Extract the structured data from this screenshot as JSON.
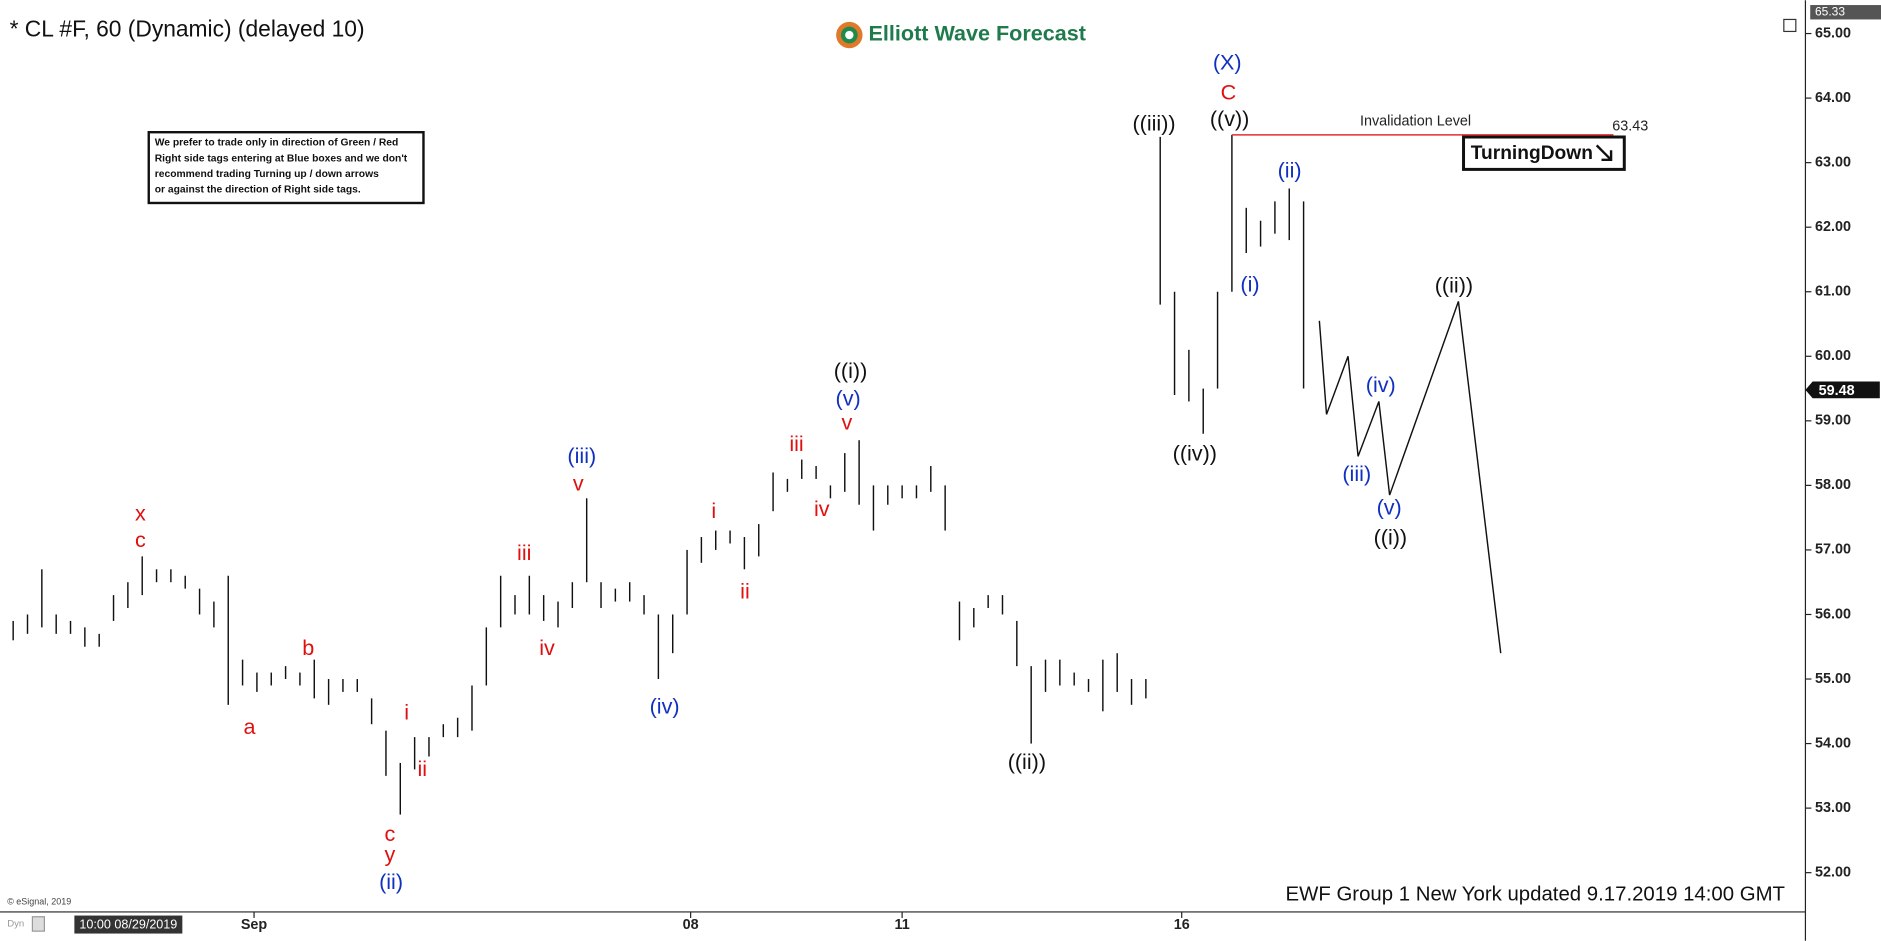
{
  "chart_data": {
    "type": "ohlc",
    "title": "* CL #F, 60 (Dynamic) (delayed 10)",
    "brand": "Elliott Wave Forecast",
    "note": [
      "We prefer to trade only in direction of Green / Red",
      "Right side tags entering at Blue boxes and we don't",
      "recommend trading Turning up / down arrows",
      "or against the direction of Right side tags."
    ],
    "footer": "EWF Group 1 New York updated 9.17.2019 14:00 GMT",
    "copyright": "© eSignal, 2019",
    "interval_tag": "Dyn",
    "start_label": "10:00 08/29/2019",
    "signal": "TurningDown",
    "invalidation": {
      "label": "Invalidation Level",
      "value": 63.43,
      "color": "#e03030"
    },
    "last_price": 59.48,
    "top_price": 65.33,
    "ylim": [
      51.67,
      65.33
    ],
    "xlim": [
      -0.5,
      125
    ],
    "yticks": [
      {
        "value": 52,
        "label": "52.00"
      },
      {
        "value": 53,
        "label": "53.00"
      },
      {
        "value": 54,
        "label": "54.00"
      },
      {
        "value": 55,
        "label": "55.00"
      },
      {
        "value": 56,
        "label": "56.00"
      },
      {
        "value": 57,
        "label": "57.00"
      },
      {
        "value": 58,
        "label": "58.00"
      },
      {
        "value": 59,
        "label": "59.00"
      },
      {
        "value": 60,
        "label": "60.00"
      },
      {
        "value": 61,
        "label": "61.00"
      },
      {
        "value": 62,
        "label": "62.00"
      },
      {
        "value": 63,
        "label": "63.00"
      },
      {
        "value": 64,
        "label": "64.00"
      },
      {
        "value": 65,
        "label": "65.00"
      }
    ],
    "xticks": [
      {
        "value": 16.8,
        "label": "Sep"
      },
      {
        "value": 47.25,
        "label": "08"
      },
      {
        "value": 62,
        "label": "11"
      },
      {
        "value": 81.5,
        "label": "16"
      }
    ],
    "high": [
      55.9,
      56.0,
      56.7,
      56.0,
      55.9,
      55.8,
      55.7,
      56.3,
      56.5,
      56.9,
      56.7,
      56.7,
      56.6,
      56.4,
      56.2,
      56.6,
      55.3,
      55.1,
      55.1,
      55.2,
      55.1,
      55.3,
      55.0,
      55.0,
      55.0,
      54.7,
      54.2,
      53.7,
      54.1,
      54.1,
      54.3,
      54.4,
      54.9,
      55.8,
      56.6,
      56.3,
      56.6,
      56.3,
      56.2,
      56.5,
      57.8,
      56.5,
      56.4,
      56.5,
      56.3,
      56.0,
      56.0,
      57.0,
      57.2,
      57.3,
      57.3,
      57.2,
      57.4,
      58.2,
      58.1,
      58.4,
      58.3,
      58.0,
      58.5,
      58.7,
      58.0,
      58.0,
      58.0,
      58.0,
      58.3,
      58.0,
      56.2,
      56.1,
      56.3,
      56.3,
      55.9,
      55.2,
      55.3,
      55.3,
      55.1,
      55.0,
      55.3,
      55.4,
      55.0,
      55.0,
      63.4,
      61.0,
      60.1,
      59.5,
      61.0,
      63.43,
      62.3,
      62.1,
      62.4,
      62.6,
      62.4
    ],
    "low": [
      55.6,
      55.7,
      55.8,
      55.7,
      55.7,
      55.5,
      55.5,
      55.9,
      56.1,
      56.3,
      56.5,
      56.5,
      56.4,
      56.0,
      55.8,
      54.6,
      54.9,
      54.8,
      54.9,
      55.0,
      54.9,
      54.7,
      54.6,
      54.8,
      54.8,
      54.3,
      53.5,
      52.9,
      53.6,
      53.8,
      54.1,
      54.1,
      54.2,
      54.9,
      55.8,
      56.0,
      56.0,
      55.9,
      55.8,
      56.1,
      56.5,
      56.1,
      56.2,
      56.2,
      56.0,
      55.0,
      55.4,
      56.0,
      56.8,
      57.0,
      57.1,
      56.7,
      56.9,
      57.6,
      57.9,
      58.1,
      58.1,
      57.8,
      57.9,
      57.7,
      57.3,
      57.7,
      57.8,
      57.8,
      57.9,
      57.3,
      55.6,
      55.8,
      56.1,
      56.0,
      55.2,
      54.0,
      54.8,
      54.9,
      54.9,
      54.8,
      54.5,
      54.8,
      54.6,
      54.7,
      60.8,
      59.4,
      59.3,
      58.8,
      59.5,
      61.0,
      61.6,
      61.7,
      61.9,
      61.8,
      59.5
    ],
    "projection": {
      "x": [
        91.1,
        91.6,
        93.1,
        93.8,
        95.25,
        96,
        100.8,
        103.75
      ],
      "y": [
        60.55,
        59.1,
        60.0,
        58.45,
        59.3,
        57.85,
        60.85,
        55.4
      ]
    },
    "wave_labels": [
      {
        "text": "x",
        "color": "#e01010"
      },
      {
        "text": "c",
        "color": "#e01010"
      },
      {
        "text": "a",
        "color": "#e01010"
      },
      {
        "text": "b",
        "color": "#e01010"
      },
      {
        "text": "i",
        "color": "#e01010"
      },
      {
        "text": "ii",
        "color": "#e01010"
      },
      {
        "text": "c",
        "color": "#e01010"
      },
      {
        "text": "y",
        "color": "#e01010"
      },
      {
        "text": "(ii)",
        "color": "#1030c0"
      },
      {
        "text": "iii",
        "color": "#e01010"
      },
      {
        "text": "iv",
        "color": "#e01010"
      },
      {
        "text": "(iii)",
        "color": "#1030c0"
      },
      {
        "text": "v",
        "color": "#e01010"
      },
      {
        "text": "(iv)",
        "color": "#1030c0"
      },
      {
        "text": "i",
        "color": "#e01010"
      },
      {
        "text": "ii",
        "color": "#e01010"
      },
      {
        "text": "iii",
        "color": "#e01010"
      },
      {
        "text": "iv",
        "color": "#e01010"
      },
      {
        "text": "((i))",
        "color": "#111111"
      },
      {
        "text": "(v)",
        "color": "#1030c0"
      },
      {
        "text": "v",
        "color": "#e01010"
      },
      {
        "text": "((ii))",
        "color": "#111111"
      },
      {
        "text": "((iii))",
        "color": "#111111"
      },
      {
        "text": "((iv))",
        "color": "#111111"
      },
      {
        "text": "(X)",
        "color": "#1030c0"
      },
      {
        "text": "C",
        "color": "#e01010"
      },
      {
        "text": "((v))",
        "color": "#111111"
      },
      {
        "text": "(ii)",
        "color": "#1030c0"
      },
      {
        "text": "(i)",
        "color": "#1030c0"
      },
      {
        "text": "((ii))",
        "color": "#111111"
      },
      {
        "text": "(iv)",
        "color": "#1030c0"
      },
      {
        "text": "(iii)",
        "color": "#1030c0"
      },
      {
        "text": "(v)",
        "color": "#1030c0"
      },
      {
        "text": "((i))",
        "color": "#111111"
      }
    ]
  }
}
